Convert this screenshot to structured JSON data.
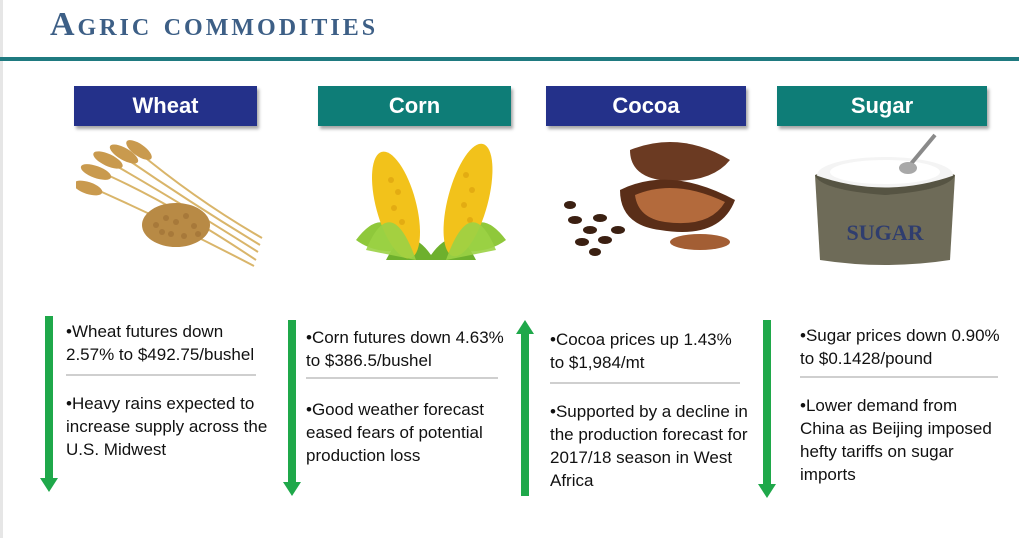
{
  "title": "Agric commodities",
  "colors": {
    "navy": "#24318a",
    "teal": "#0e7d77",
    "arrow_green": "#1fa84a",
    "title_blue": "#3d5f86"
  },
  "commodities": [
    {
      "name": "Wheat",
      "direction": "down",
      "point1": "•Wheat futures down 2.57% to $492.75/bushel",
      "point2": "•Heavy rains expected to increase supply across the U.S. Midwest"
    },
    {
      "name": "Corn",
      "direction": "down",
      "point1": "•Corn futures down 4.63% to $386.5/bushel",
      "point2": "•Good weather forecast eased fears of potential production loss"
    },
    {
      "name": "Cocoa",
      "direction": "up",
      "point1": "•Cocoa prices up 1.43% to $1,984/mt",
      "point2": "•Supported by a decline in the production forecast for 2017/18 season in West Africa"
    },
    {
      "name": "Sugar",
      "direction": "down",
      "point1": "•Sugar prices down 0.90% to $0.1428/pound",
      "point2": "•Lower demand from China as Beijing imposed hefty tariffs on sugar imports",
      "sack_label": "SUGAR"
    }
  ]
}
